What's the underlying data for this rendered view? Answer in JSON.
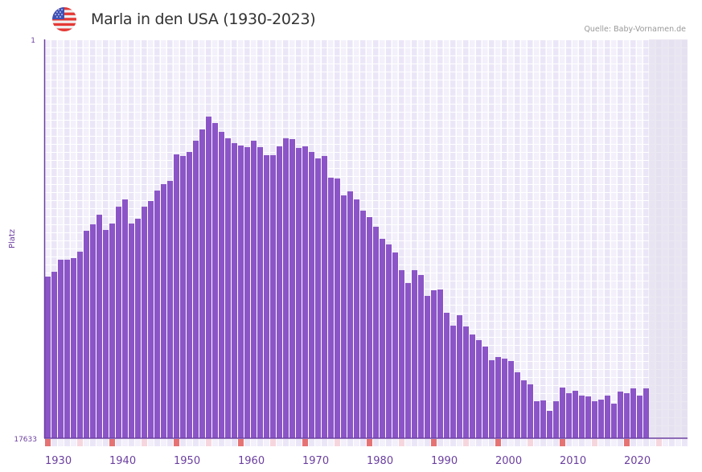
{
  "header": {
    "title": "Marla in den USA (1930-2023)",
    "source": "Quelle: Baby-Vornamen.de",
    "flag_icon": "us-flag-icon"
  },
  "colors": {
    "bar": "#8b55c7",
    "axis": "#6b3fa0",
    "grid_cell_a": "#f3f0fb",
    "grid_cell_b": "#ebe6f7",
    "future_shade": "#e2deec",
    "decade_marker": "#e57373",
    "half_decade_marker": "#f6d6de"
  },
  "chart_data": {
    "type": "bar",
    "title": "Marla in den USA (1930-2023)",
    "xlabel": "",
    "ylabel": "Platz",
    "y_axis_inverted": true,
    "ylim": [
      1,
      17633
    ],
    "ytick_labels": [
      "1",
      "17633"
    ],
    "xlim": [
      1930,
      2029
    ],
    "xtick_labels": [
      "1930",
      "1940",
      "1950",
      "1960",
      "1970",
      "1980",
      "1990",
      "2000",
      "2010",
      "2020"
    ],
    "grid": true,
    "x": [
      1930,
      1931,
      1932,
      1933,
      1934,
      1935,
      1936,
      1937,
      1938,
      1939,
      1940,
      1941,
      1942,
      1943,
      1944,
      1945,
      1946,
      1947,
      1948,
      1949,
      1950,
      1951,
      1952,
      1953,
      1954,
      1955,
      1956,
      1957,
      1958,
      1959,
      1960,
      1961,
      1962,
      1963,
      1964,
      1965,
      1966,
      1967,
      1968,
      1969,
      1970,
      1971,
      1972,
      1973,
      1974,
      1975,
      1976,
      1977,
      1978,
      1979,
      1980,
      1981,
      1982,
      1983,
      1984,
      1985,
      1986,
      1987,
      1988,
      1989,
      1990,
      1991,
      1992,
      1993,
      1994,
      1995,
      1996,
      1997,
      1998,
      1999,
      2000,
      2001,
      2002,
      2003,
      2004,
      2005,
      2006,
      2007,
      2008,
      2009,
      2010,
      2011,
      2012,
      2013,
      2014,
      2015,
      2016,
      2017,
      2018,
      2019,
      2020,
      2021,
      2022,
      2023
    ],
    "values": [
      10488,
      10275,
      9741,
      9741,
      9670,
      9386,
      8462,
      8177,
      7751,
      8426,
      8142,
      7396,
      7076,
      8142,
      7928,
      7396,
      7146,
      6684,
      6400,
      6257,
      5085,
      5155,
      4978,
      4480,
      3982,
      3414,
      3698,
      4089,
      4373,
      4587,
      4693,
      4764,
      4480,
      4764,
      5120,
      5120,
      4729,
      4373,
      4409,
      4800,
      4729,
      4978,
      5262,
      5155,
      6115,
      6151,
      6897,
      6719,
      7076,
      7573,
      7857,
      8284,
      8817,
      9066,
      9421,
      10203,
      10772,
      10203,
      10417,
      11341,
      11092,
      11056,
      12087,
      12656,
      12194,
      12692,
      13047,
      13296,
      13580,
      14184,
      14043,
      14114,
      14220,
      14718,
      15073,
      15251,
      15998,
      15962,
      16424,
      15998,
      15393,
      15642,
      15535,
      15749,
      15784,
      15998,
      15927,
      15749,
      16104,
      15571,
      15642,
      15429,
      15749,
      15429
    ]
  }
}
